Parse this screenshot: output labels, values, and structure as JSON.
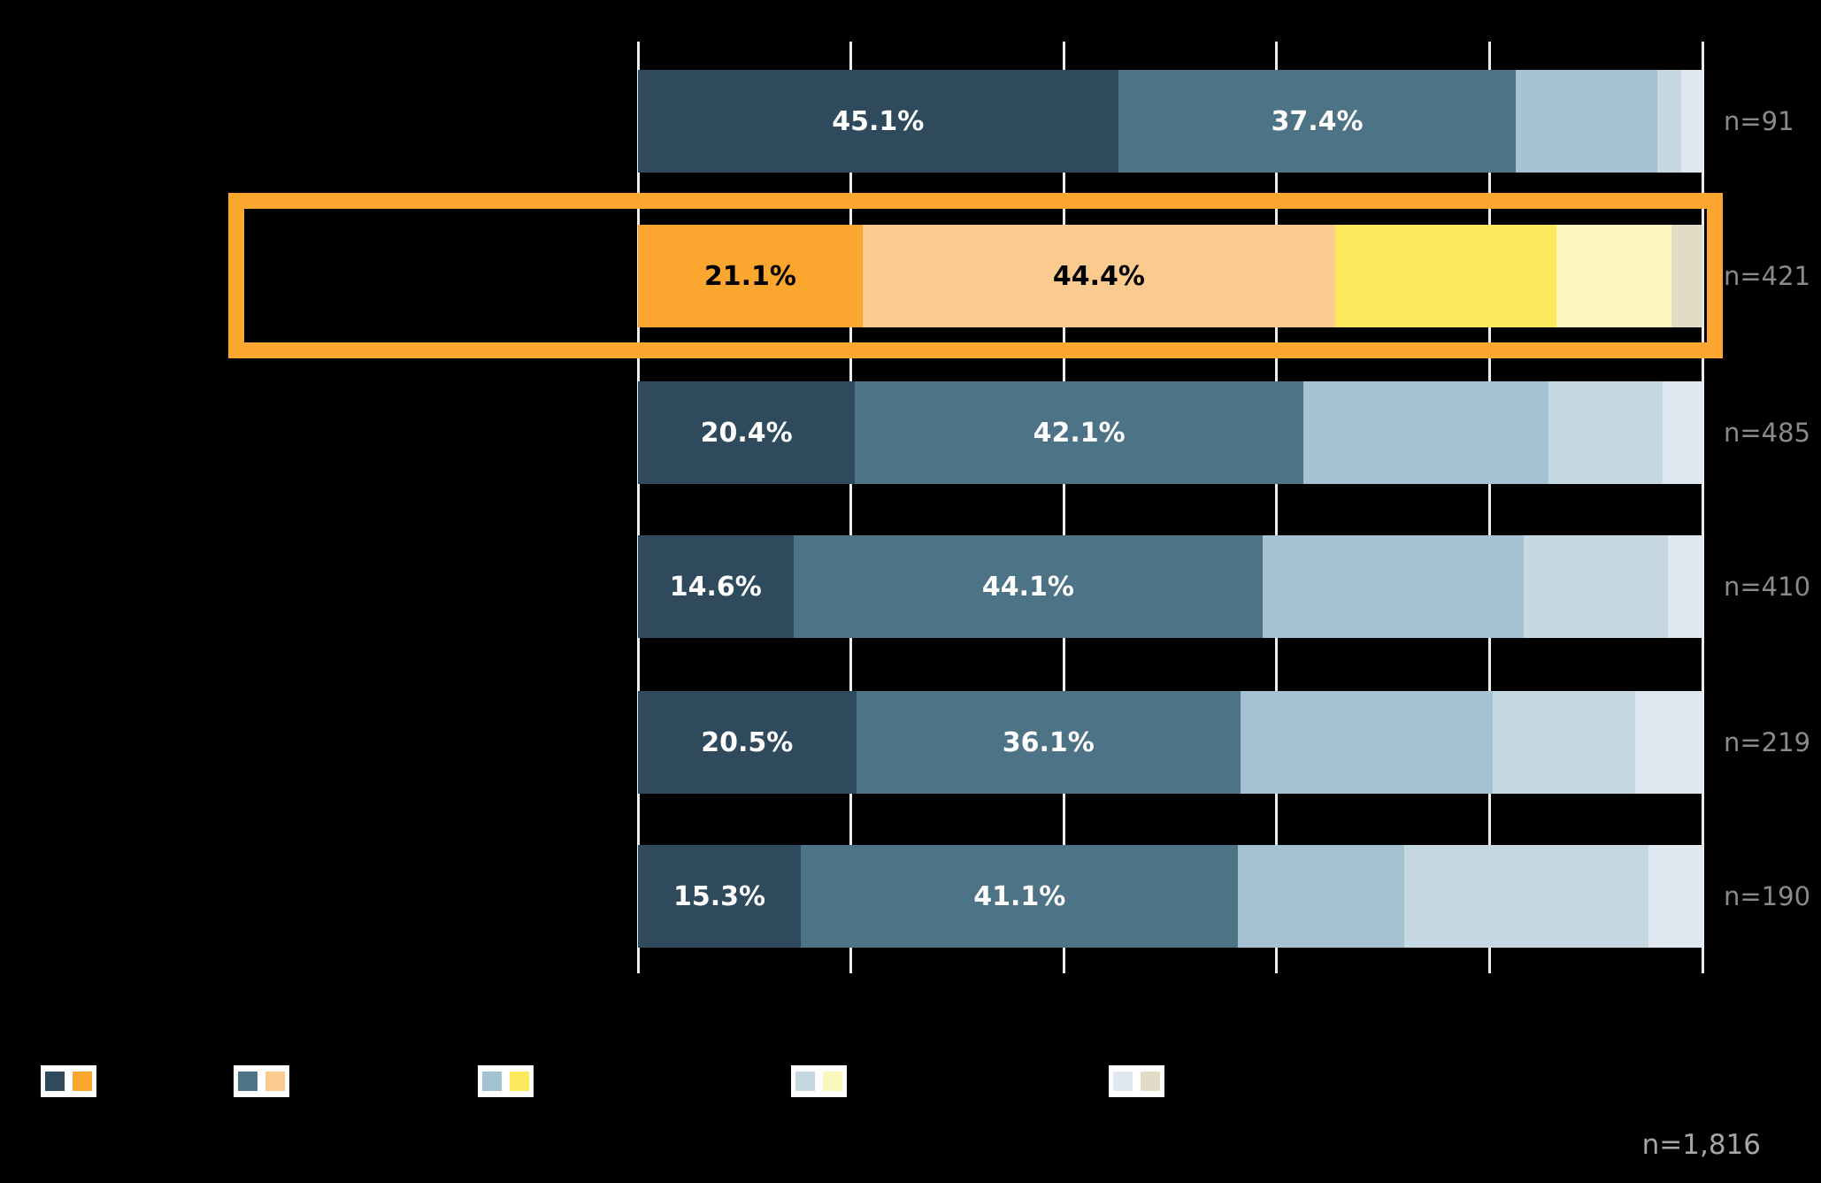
{
  "chart_data": {
    "type": "bar",
    "orientation": "horizontal-stacked",
    "title": "",
    "x_axis": {
      "min": 0,
      "max": 100,
      "gridlines_pct": [
        0,
        20,
        40,
        60,
        80,
        100
      ],
      "tick_labels_visible": false
    },
    "rows": [
      {
        "n_label": "n=91",
        "palette": "blue",
        "highlighted": false,
        "values": [
          45.1,
          37.4,
          13.3,
          2.2,
          2.0
        ],
        "value_labels": [
          "45.1%",
          "37.4%",
          "",
          "",
          ""
        ]
      },
      {
        "n_label": "n=421",
        "palette": "orange",
        "highlighted": true,
        "values": [
          21.1,
          44.4,
          20.8,
          10.8,
          2.9
        ],
        "value_labels": [
          "21.1%",
          "44.4%",
          "",
          "",
          ""
        ]
      },
      {
        "n_label": "n=485",
        "palette": "blue",
        "highlighted": false,
        "values": [
          20.4,
          42.1,
          23.0,
          10.8,
          3.7
        ],
        "value_labels": [
          "20.4%",
          "42.1%",
          "",
          "",
          ""
        ]
      },
      {
        "n_label": "n=410",
        "palette": "blue",
        "highlighted": false,
        "values": [
          14.6,
          44.1,
          24.5,
          13.6,
          3.2
        ],
        "value_labels": [
          "14.6%",
          "44.1%",
          "",
          "",
          ""
        ]
      },
      {
        "n_label": "n=219",
        "palette": "blue",
        "highlighted": false,
        "values": [
          20.5,
          36.1,
          23.7,
          13.4,
          6.3
        ],
        "value_labels": [
          "20.5%",
          "36.1%",
          "",
          "",
          ""
        ]
      },
      {
        "n_label": "n=190",
        "palette": "blue",
        "highlighted": false,
        "values": [
          15.3,
          41.1,
          15.6,
          22.9,
          5.1
        ],
        "value_labels": [
          "15.3%",
          "41.1%",
          "",
          "",
          ""
        ]
      }
    ],
    "palettes": {
      "blue": [
        "#2E4A5C",
        "#4D7386",
        "#A4C2D2",
        "#C6D8E2",
        "#DFE8F0"
      ],
      "orange": [
        "#FBA62E",
        "#FBCA8E",
        "#FDE95B",
        "#FCF7BD",
        "#E2DCC6"
      ]
    },
    "legend": {
      "labels_visible": false,
      "pairs": [
        [
          "#2E4A5C",
          "#FBA62E"
        ],
        [
          "#4D7386",
          "#FBCA8E"
        ],
        [
          "#A4C2D2",
          "#FDE95B"
        ],
        [
          "#C6D8E2",
          "#FCF7BD"
        ],
        [
          "#DFE8F0",
          "#E2DCC6"
        ]
      ]
    },
    "total_label": "n=1,816",
    "colors": {
      "background": "#000000",
      "grid": "#EDEDED",
      "highlight_border": "#FBA62E",
      "n_label_text": "#8A8A8A",
      "total_label_text": "#A6A6A6",
      "bar_label_on_blue": "#FFFFFF",
      "bar_label_on_orange": "#000000"
    }
  }
}
